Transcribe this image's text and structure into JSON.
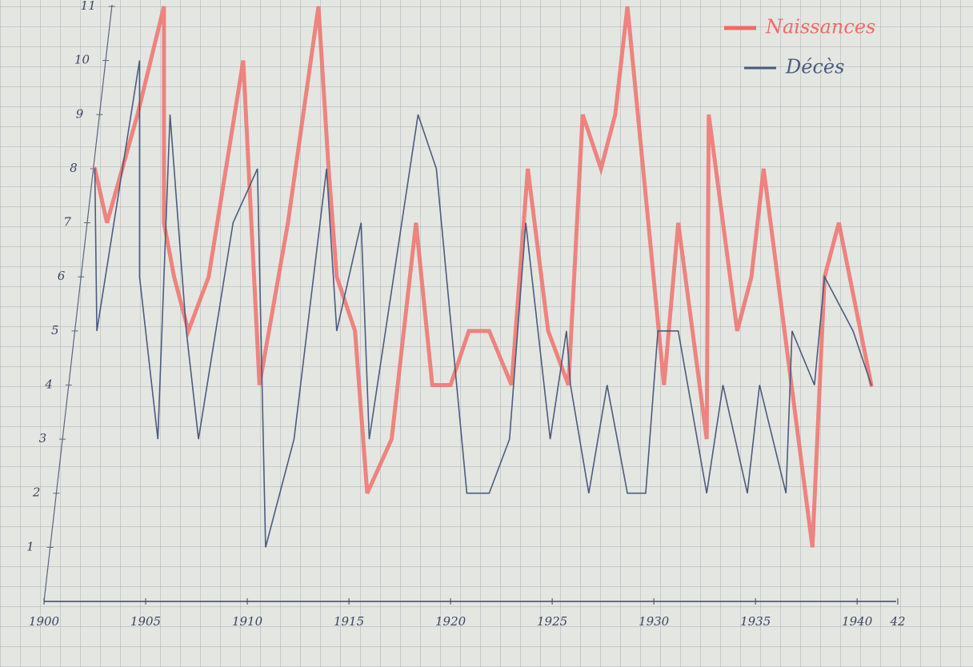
{
  "chart_data": {
    "type": "line",
    "xlim": [
      1900,
      1942
    ],
    "xticks": [
      1900,
      1905,
      1910,
      1915,
      1920,
      1925,
      1930,
      1935,
      1940,
      {
        "value": 1942,
        "label": "42"
      }
    ],
    "ylim": [
      0,
      11
    ],
    "yticks": [
      1,
      2,
      3,
      4,
      5,
      6,
      7,
      8,
      9,
      10,
      11
    ],
    "grid": true,
    "legend": "top-right",
    "series": [
      {
        "name": "Naissances",
        "color": "#f06a66",
        "x": [
          1902.5,
          1903.1,
          1904.6,
          1905.9,
          1905.9,
          1906.4,
          1907.1,
          1908.1,
          1909.8,
          1910.6,
          1912.0,
          1913.5,
          1914.0,
          1914.4,
          1915.3,
          1915.9,
          1917.1,
          1918.3,
          1919.1,
          1920.0,
          1920.9,
          1921.9,
          1923.0,
          1923.8,
          1924.8,
          1925.8,
          1926.5,
          1927.4,
          1928.1,
          1928.7,
          1930.5,
          1931.2,
          1932.6,
          1932.7,
          1934.1,
          1934.8,
          1935.4,
          1937.8,
          1938.4,
          1939.1,
          1940.7
        ],
        "values": [
          8,
          7,
          9,
          11,
          7,
          6,
          5,
          6,
          10,
          4,
          7,
          11,
          8,
          6,
          5,
          2,
          3,
          7,
          4,
          4,
          5,
          5,
          4,
          8,
          5,
          4,
          9,
          8,
          9,
          11,
          4,
          7,
          3,
          9,
          5,
          6,
          8,
          1,
          6,
          7,
          4
        ]
      },
      {
        "name": "Décès",
        "color": "#4c5c7e",
        "x": [
          1902.5,
          1902.6,
          1904.7,
          1904.7,
          1905.6,
          1906.2,
          1907.0,
          1907.6,
          1909.3,
          1910.5,
          1910.9,
          1912.3,
          1913.9,
          1914.4,
          1915.6,
          1916.0,
          1917.2,
          1918.4,
          1919.3,
          1920.8,
          1921.9,
          1922.9,
          1923.7,
          1924.9,
          1925.7,
          1925.9,
          1926.8,
          1927.7,
          1928.7,
          1929.6,
          1930.2,
          1931.2,
          1932.6,
          1933.4,
          1934.6,
          1935.2,
          1936.5,
          1936.8,
          1937.9,
          1938.4,
          1939.8,
          1940.7
        ],
        "values": [
          8,
          5,
          10,
          6,
          3,
          9,
          5,
          3,
          7,
          8,
          1,
          3,
          8,
          5,
          7,
          3,
          6,
          9,
          8,
          2,
          2,
          3,
          7,
          3,
          5,
          4,
          2,
          4,
          2,
          2,
          5,
          5,
          2,
          4,
          2,
          4,
          2,
          5,
          4,
          6,
          5,
          4
        ]
      }
    ]
  }
}
